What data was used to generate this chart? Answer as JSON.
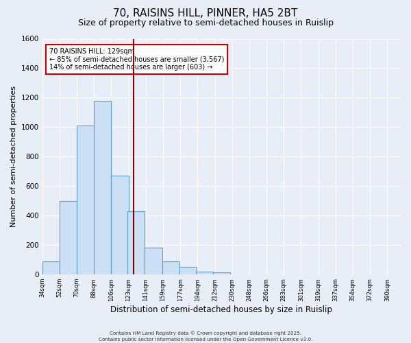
{
  "title": "70, RAISINS HILL, PINNER, HA5 2BT",
  "subtitle": "Size of property relative to semi-detached houses in Ruislip",
  "xlabel": "Distribution of semi-detached houses by size in Ruislip",
  "ylabel": "Number of semi-detached properties",
  "bar_left_edges": [
    34,
    52,
    70,
    88,
    106,
    123,
    141,
    159,
    177,
    194,
    212,
    230,
    248,
    266,
    283,
    301,
    319,
    337,
    354,
    372
  ],
  "bar_heights": [
    90,
    500,
    1010,
    1180,
    670,
    430,
    180,
    90,
    50,
    20,
    15,
    0,
    0,
    0,
    0,
    0,
    0,
    0,
    0,
    0
  ],
  "bin_width": 18,
  "bar_color": "#cce0f5",
  "bar_edge_color": "#5b9bd5",
  "vline_x": 129,
  "vline_color": "#8b0000",
  "ylim": [
    0,
    1600
  ],
  "yticks": [
    0,
    200,
    400,
    600,
    800,
    1000,
    1200,
    1400,
    1600
  ],
  "xtick_labels": [
    "34sqm",
    "52sqm",
    "70sqm",
    "88sqm",
    "106sqm",
    "123sqm",
    "141sqm",
    "159sqm",
    "177sqm",
    "194sqm",
    "212sqm",
    "230sqm",
    "248sqm",
    "266sqm",
    "283sqm",
    "301sqm",
    "319sqm",
    "337sqm",
    "354sqm",
    "372sqm",
    "390sqm"
  ],
  "annotation_line1": "70 RAISINS HILL: 129sqm",
  "annotation_line2": "← 85% of semi-detached houses are smaller (3,567)",
  "annotation_line3": "14% of semi-detached houses are larger (603) →",
  "footer_line1": "Contains HM Land Registry data © Crown copyright and database right 2025.",
  "footer_line2": "Contains public sector information licensed under the Open Government Licence v3.0.",
  "background_color": "#e8eef8",
  "plot_background_color": "#e8eef8",
  "grid_color": "#c8d4e8",
  "title_fontsize": 11,
  "subtitle_fontsize": 9,
  "xlabel_fontsize": 8.5,
  "ylabel_fontsize": 8
}
